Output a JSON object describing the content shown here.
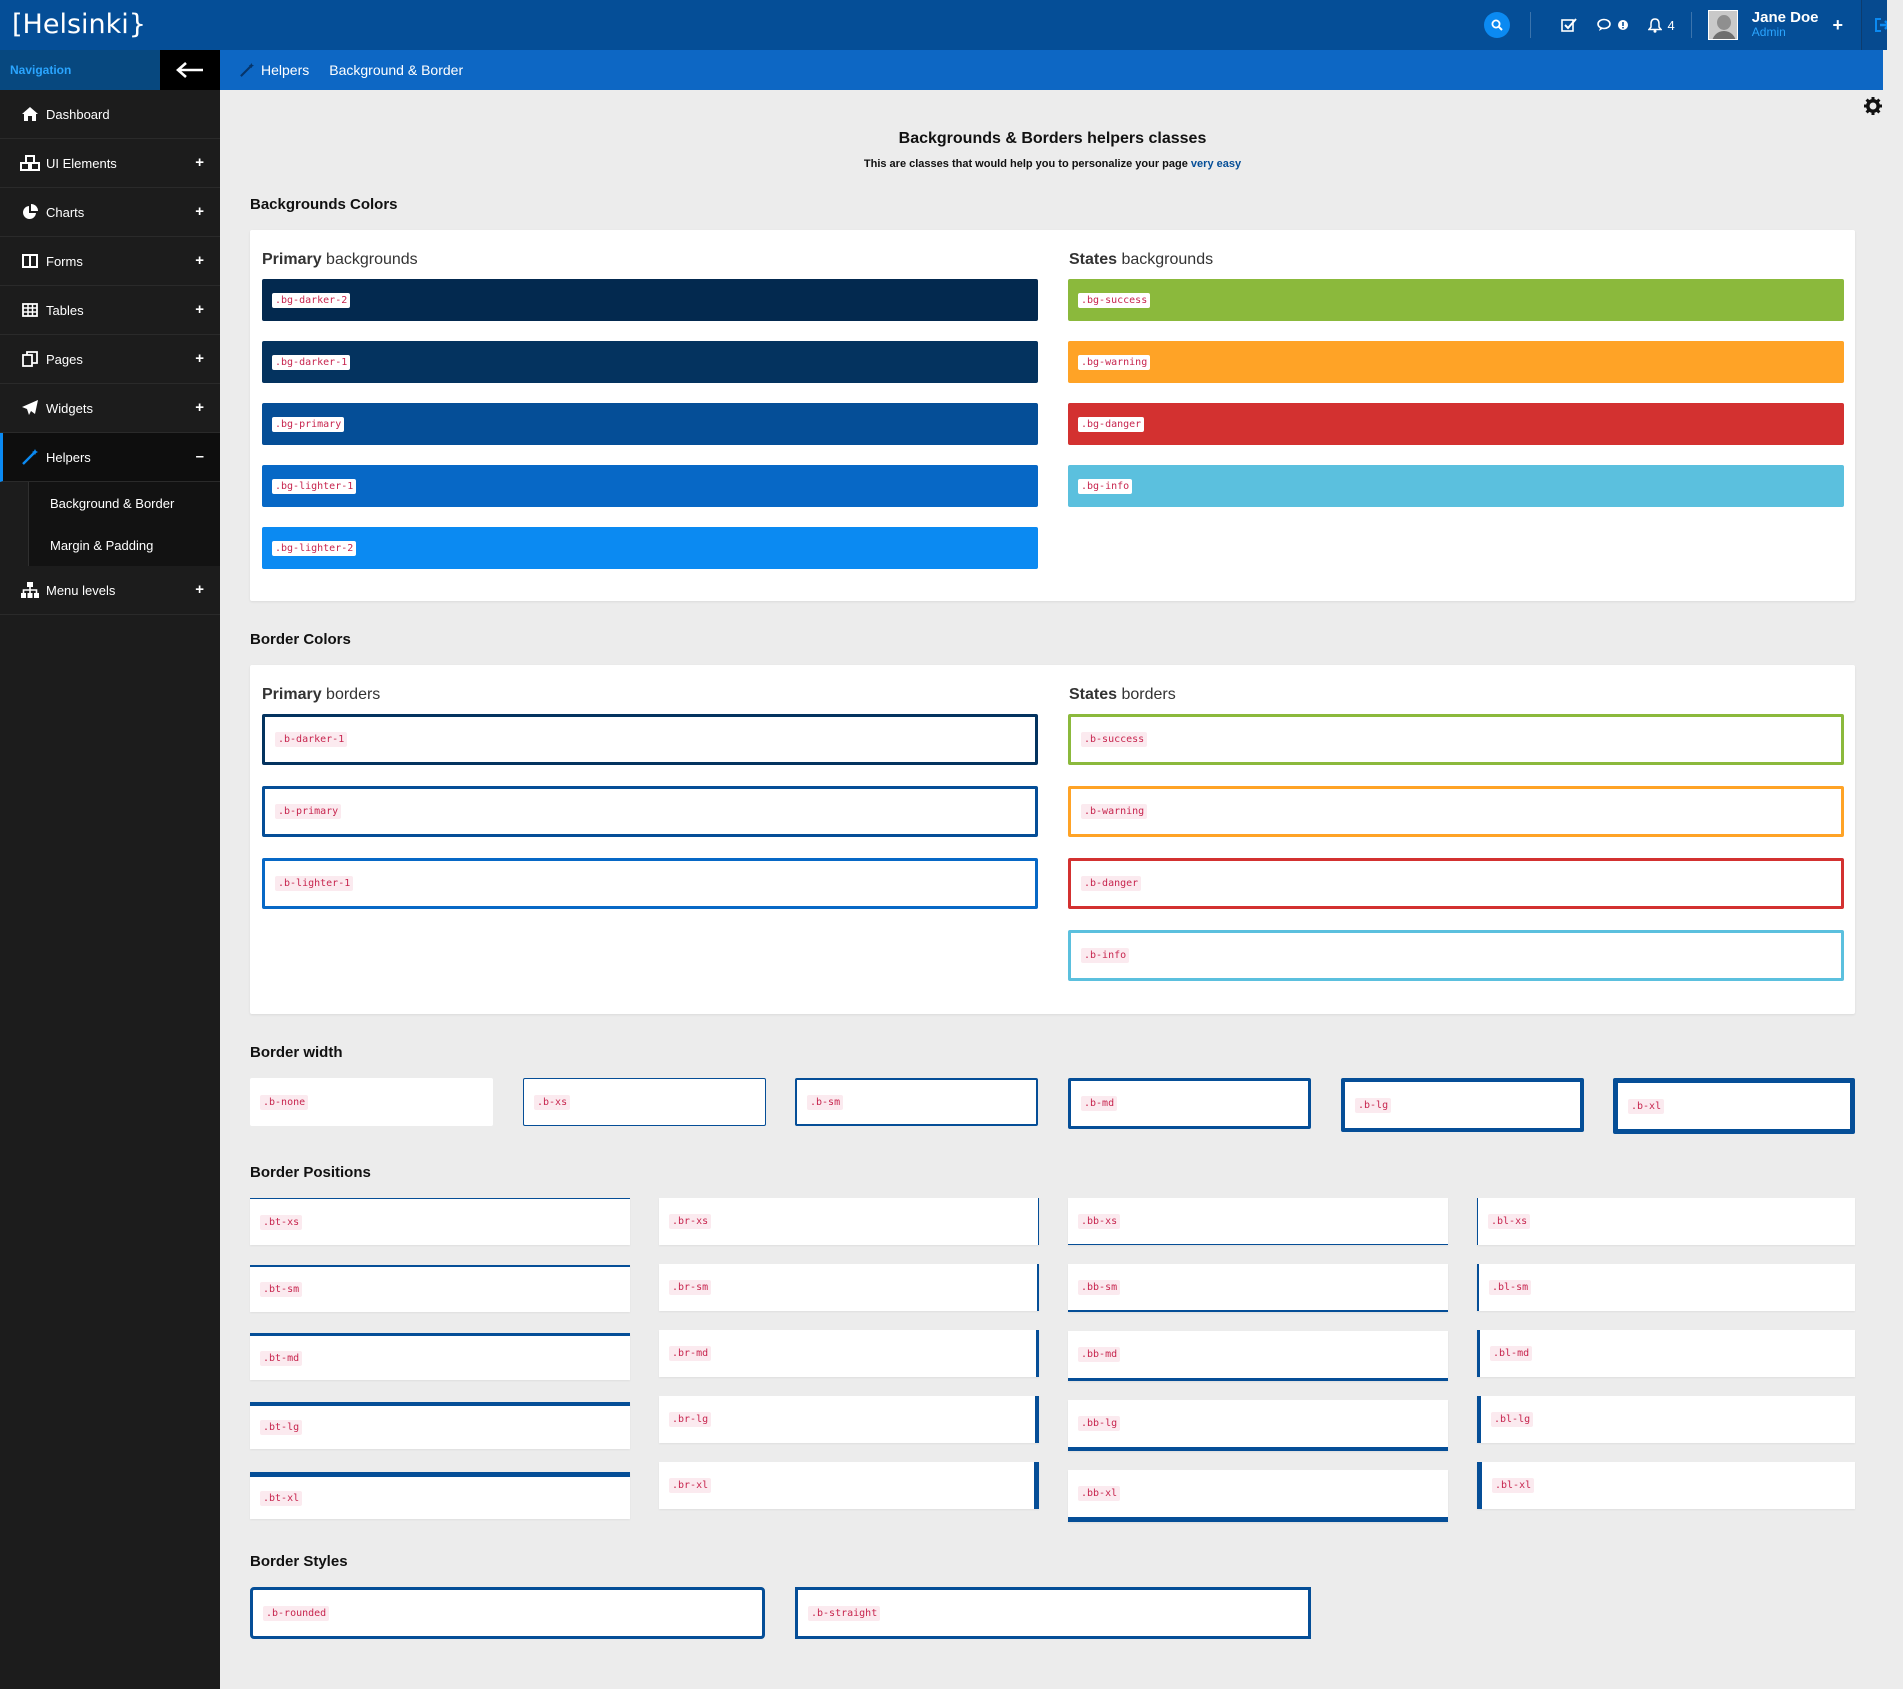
{
  "app": {
    "logo": "[Helsinki}"
  },
  "topbar": {
    "notifications_count": "4",
    "user_name": "Jane Doe",
    "user_role": "Admin",
    "plus": "+"
  },
  "sidebar": {
    "header": "Navigation",
    "items": [
      {
        "label": "Dashboard"
      },
      {
        "label": "UI Elements"
      },
      {
        "label": "Charts"
      },
      {
        "label": "Forms"
      },
      {
        "label": "Tables"
      },
      {
        "label": "Pages"
      },
      {
        "label": "Widgets"
      },
      {
        "label": "Helpers"
      },
      {
        "label": "Menu levels"
      }
    ],
    "sub_items": [
      {
        "label": "Background & Border"
      },
      {
        "label": "Margin & Padding"
      }
    ]
  },
  "breadcrumb": {
    "parent": "Helpers",
    "current": "Background & Border"
  },
  "page": {
    "title": "Backgrounds & Borders helpers classes",
    "subtitle": "This are classes that would help you to personalize your page",
    "subtitle_link": "very easy"
  },
  "sections": {
    "bg_colors": "Backgrounds Colors",
    "border_colors": "Border Colors",
    "border_width": "Border width",
    "border_positions": "Border Positions",
    "border_styles": "Border Styles"
  },
  "bg_card": {
    "primary_bold": "Primary",
    "primary_rest": " backgrounds",
    "states_bold": "States",
    "states_rest": " backgrounds",
    "primary": [
      ".bg-darker-2",
      ".bg-darker-1",
      ".bg-primary",
      ".bg-lighter-1",
      ".bg-lighter-2"
    ],
    "states": [
      ".bg-success",
      ".bg-warning",
      ".bg-danger",
      ".bg-info"
    ]
  },
  "border_card": {
    "primary_bold": "Primary",
    "primary_rest": " borders",
    "states_bold": "States",
    "states_rest": " borders",
    "primary": [
      ".b-darker-1",
      ".b-primary",
      ".b-lighter-1"
    ],
    "states": [
      ".b-success",
      ".b-warning",
      ".b-danger",
      ".b-info"
    ]
  },
  "width_classes": [
    ".b-none",
    ".b-xs",
    ".b-sm",
    ".b-md",
    ".b-lg",
    ".b-xl"
  ],
  "positions": {
    "top": [
      ".bt-xs",
      ".bt-sm",
      ".bt-md",
      ".bt-lg",
      ".bt-xl"
    ],
    "right": [
      ".br-xs",
      ".br-sm",
      ".br-md",
      ".br-lg",
      ".br-xl"
    ],
    "bottom": [
      ".bb-xs",
      ".bb-sm",
      ".bb-md",
      ".bb-lg",
      ".bb-xl"
    ],
    "left": [
      ".bl-xs",
      ".bl-sm",
      ".bl-md",
      ".bl-lg",
      ".bl-xl"
    ]
  },
  "styles": [
    ".b-rounded",
    ".b-straight"
  ],
  "colors": {
    "darker_2": "#03294f",
    "darker_1": "#04335f",
    "primary": "#054e97",
    "lighter_1": "#0768c6",
    "lighter_2": "#0b8af2",
    "success": "#8bb93c",
    "warning": "#ffa326",
    "danger": "#d33130",
    "info": "#5bc0de"
  }
}
